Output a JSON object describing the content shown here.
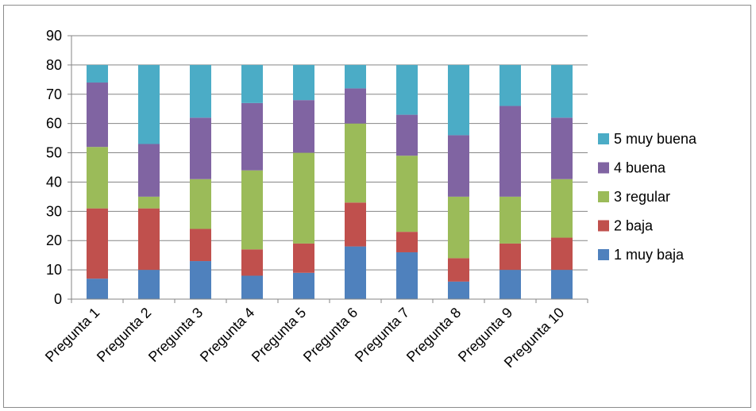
{
  "chart_data": {
    "type": "bar",
    "stacked": true,
    "title": "",
    "xlabel": "",
    "ylabel": "",
    "categories": [
      "Pregunta 1",
      "Pregunta 2",
      "Pregunta 3",
      "Pregunta 4",
      "Pregunta 5",
      "Pregunta 6",
      "Pregunta 7",
      "Pregunta 8",
      "Pregunta 9",
      "Pregunta 10"
    ],
    "series": [
      {
        "name": "1 muy baja",
        "color": "#4F81BD",
        "values": [
          7,
          10,
          13,
          8,
          9,
          18,
          16,
          6,
          10,
          10
        ]
      },
      {
        "name": "2 baja",
        "color": "#C0504D",
        "values": [
          24,
          21,
          11,
          9,
          10,
          15,
          7,
          8,
          9,
          11
        ]
      },
      {
        "name": "3 regular",
        "color": "#9BBB59",
        "values": [
          21,
          4,
          17,
          27,
          31,
          27,
          26,
          21,
          16,
          20
        ]
      },
      {
        "name": "4 buena",
        "color": "#8064A2",
        "values": [
          22,
          18,
          21,
          23,
          18,
          12,
          14,
          21,
          31,
          21
        ]
      },
      {
        "name": "5 muy buena",
        "color": "#4BACC6",
        "values": [
          6,
          27,
          18,
          13,
          12,
          8,
          17,
          24,
          14,
          18
        ]
      }
    ],
    "ylim": [
      0,
      90
    ],
    "yticks": [
      0,
      10,
      20,
      30,
      40,
      50,
      60,
      70,
      80,
      90
    ],
    "grid": true,
    "legend_position": "right"
  }
}
